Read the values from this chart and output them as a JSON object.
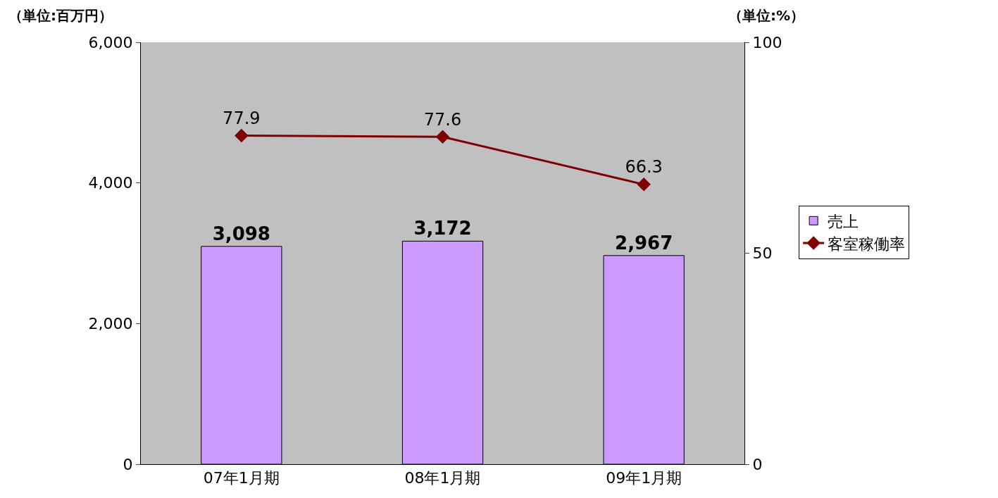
{
  "chart_data": {
    "type": "bar",
    "categories": [
      "07年1月期",
      "08年1月期",
      "09年1月期"
    ],
    "ylabel": "（単位:百万円）",
    "y2label": "（単位:%）",
    "series": [
      {
        "name": "売上",
        "color": "#cc99ff",
        "values": [
          3098,
          3172,
          2967
        ],
        "value_labels": [
          "3,098",
          "3,172",
          "2,967"
        ]
      },
      {
        "name": "客室稼働率",
        "type": "line",
        "axis": "y2",
        "color": "#800000",
        "marker": "diamond",
        "values": [
          77.9,
          77.6,
          66.3
        ],
        "value_labels": [
          "77.9",
          "77.6",
          "66.3"
        ]
      }
    ],
    "ylim": [
      0,
      6000
    ],
    "yticks": [
      0,
      {
        "value": 2000,
        "label": "2,000"
      },
      {
        "value": 4000,
        "label": "4,000"
      },
      {
        "value": 6000,
        "label": "6,000"
      }
    ],
    "y2lim": [
      0,
      100
    ],
    "y2ticks": [
      0,
      50,
      100
    ],
    "grid": false,
    "legend": "right"
  }
}
